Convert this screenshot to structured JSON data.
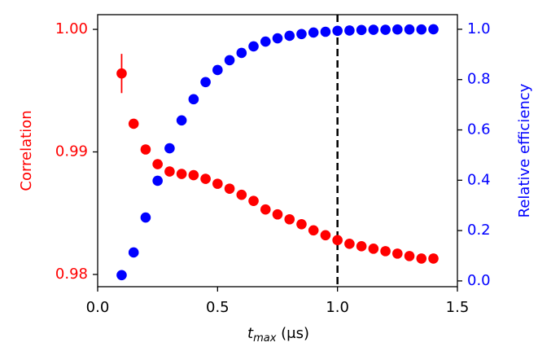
{
  "chart_data": {
    "type": "scatter",
    "xlabel": {
      "base": "t",
      "sub": "max",
      "rest": " (μs)"
    },
    "ylabel": "Correlation",
    "y2label": "Relative efficiency",
    "ylabel_color": "#ff0000",
    "y2label_color": "#0000ff",
    "xlim": [
      0,
      1.5
    ],
    "xticks": [
      {
        "value": 0,
        "label": "0.0"
      },
      0.5,
      {
        "value": 1,
        "label": "1.0"
      },
      1.5
    ],
    "ylim": [
      0.979,
      1.0012
    ],
    "yticks": [
      0.98,
      0.99,
      {
        "value": 1,
        "label": "1.00"
      }
    ],
    "y2lim": [
      -0.023,
      1.058
    ],
    "y2ticks": [
      {
        "value": 0,
        "label": "0.0"
      },
      0.2,
      0.4,
      0.6,
      0.8,
      {
        "value": 1,
        "label": "1.0"
      }
    ],
    "vlines": [
      {
        "x": 1.0,
        "color": "#000000",
        "style": "dashed"
      }
    ],
    "series": [
      {
        "color": "#ff0000",
        "axis": "y",
        "x": [
          0.1,
          0.15,
          0.2,
          0.25,
          0.3,
          0.35,
          0.4,
          0.45,
          0.5,
          0.55,
          0.6,
          0.65,
          0.7,
          0.75,
          0.8,
          0.85,
          0.9,
          0.95,
          1.0,
          1.05,
          1.1,
          1.15,
          1.2,
          1.25,
          1.3,
          1.35,
          1.4
        ],
        "values": [
          0.9964,
          0.9923,
          0.9902,
          0.989,
          0.9884,
          0.9882,
          0.9881,
          0.9878,
          0.9874,
          0.987,
          0.9865,
          0.986,
          0.9853,
          0.9849,
          0.9845,
          0.9841,
          0.9836,
          0.9832,
          0.9828,
          0.9825,
          0.9823,
          0.9821,
          0.9819,
          0.9817,
          0.9815,
          0.9813,
          0.9813
        ],
        "errors": [
          0.0016,
          null,
          null,
          null,
          null,
          null,
          null,
          null,
          null,
          null,
          null,
          null,
          null,
          null,
          null,
          null,
          null,
          null,
          null,
          null,
          null,
          null,
          null,
          null,
          null,
          null,
          null
        ]
      },
      {
        "color": "#0000ff",
        "axis": "y2",
        "x": [
          0.1,
          0.15,
          0.2,
          0.25,
          0.3,
          0.35,
          0.4,
          0.45,
          0.5,
          0.55,
          0.6,
          0.65,
          0.7,
          0.75,
          0.8,
          0.85,
          0.9,
          0.95,
          1.0,
          1.05,
          1.1,
          1.15,
          1.2,
          1.25,
          1.3,
          1.35,
          1.4
        ],
        "values": [
          0.023,
          0.113,
          0.252,
          0.398,
          0.527,
          0.638,
          0.722,
          0.79,
          0.838,
          0.877,
          0.906,
          0.932,
          0.951,
          0.964,
          0.974,
          0.981,
          0.987,
          0.99,
          0.994,
          0.995,
          0.997,
          0.998,
          0.998,
          0.999,
          0.999,
          0.999,
          1.0
        ]
      }
    ]
  }
}
